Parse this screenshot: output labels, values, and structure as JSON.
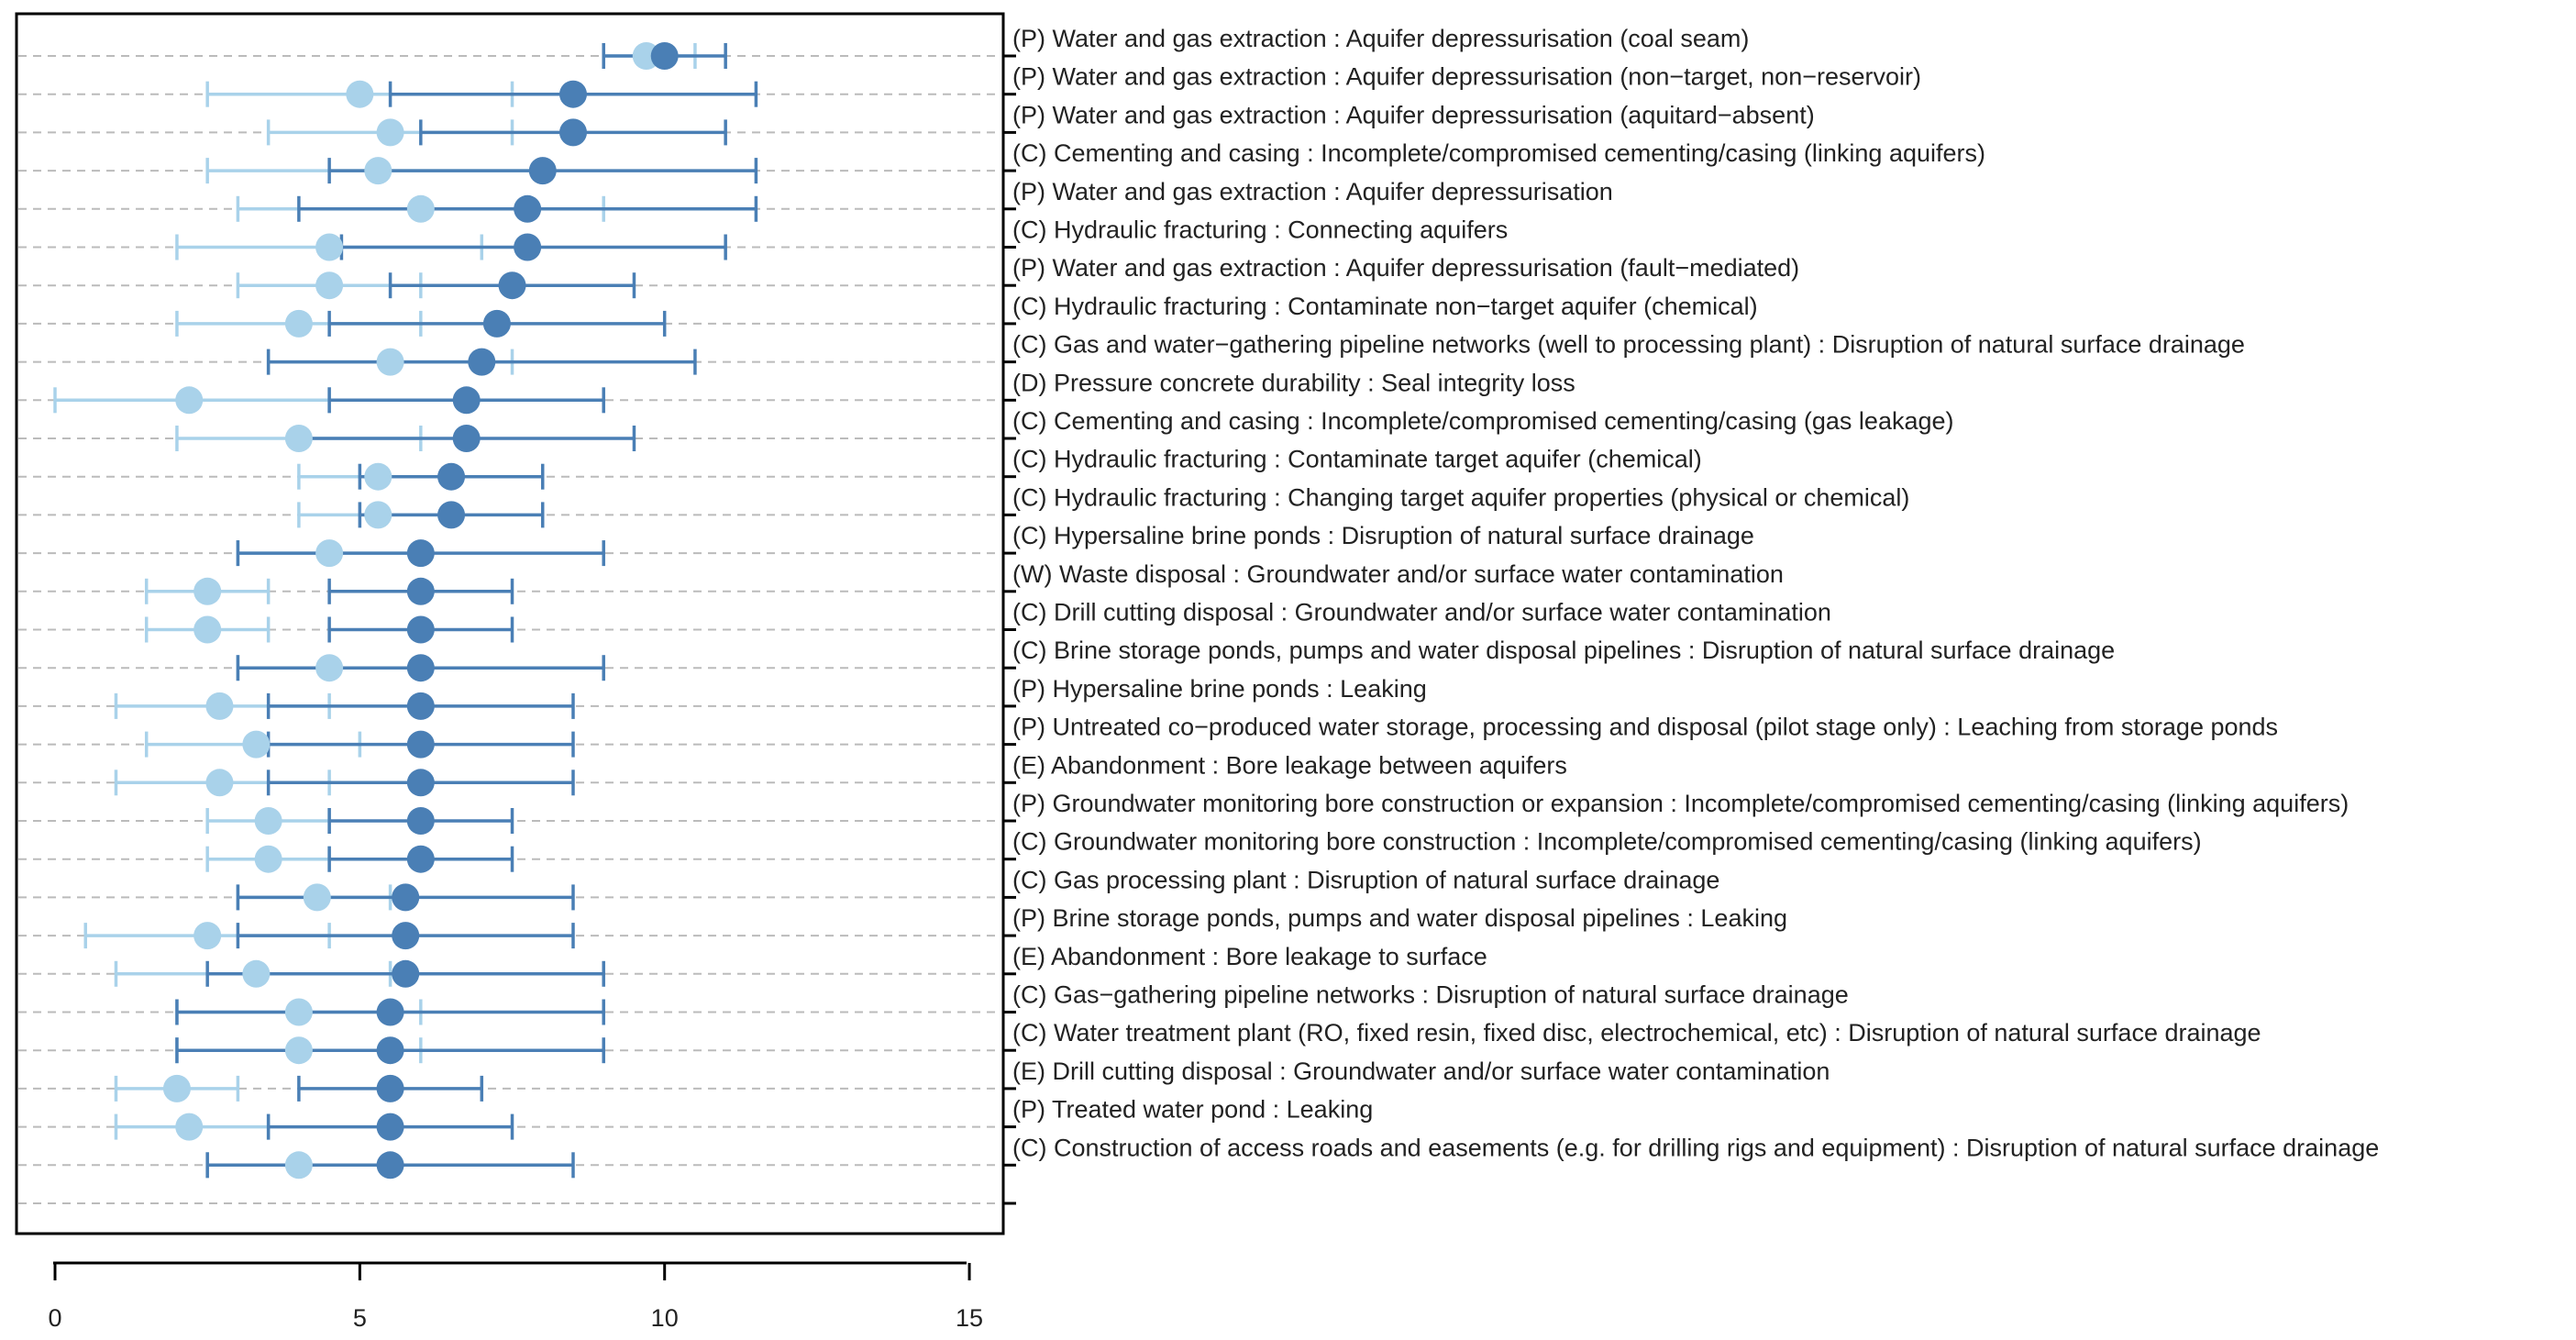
{
  "chart_data": {
    "type": "scatter",
    "subtype": "dot-and-whisker",
    "title": "",
    "xlabel": "",
    "ylabel": "",
    "xlim": [
      -0.6,
      15.6
    ],
    "x_ticks": [
      0,
      5,
      10,
      15
    ],
    "x_tick_labels": [
      "0",
      "5",
      "10",
      "15"
    ],
    "grid": "horizontal dashed",
    "legend": "none",
    "colors": {
      "series_1": "#a9d2ea",
      "series_2": "#4a7fb5",
      "grid": "#bbbbbb",
      "frame": "#000000",
      "text": "#222222"
    },
    "row_labels": [
      "(P) Water and gas extraction : Aquifer depressurisation (coal seam)",
      "(P) Water and gas extraction : Aquifer depressurisation (non−target, non−reservoir)",
      "(P) Water and gas extraction : Aquifer depressurisation (aquitard−absent)",
      "(C) Cementing and casing : Incomplete/compromised cementing/casing (linking aquifers)",
      "(P) Water and gas extraction : Aquifer depressurisation",
      "(C) Hydraulic fracturing : Connecting aquifers",
      "(P) Water and gas extraction : Aquifer depressurisation (fault−mediated)",
      "(C) Hydraulic fracturing : Contaminate non−target aquifer (chemical)",
      "(C) Gas and water−gathering pipeline networks (well to processing plant) : Disruption of natural surface drainage",
      "(D) Pressure concrete durability : Seal integrity loss",
      "(C) Cementing and casing : Incomplete/compromised cementing/casing (gas leakage)",
      "(C) Hydraulic fracturing : Contaminate target aquifer (chemical)",
      "(C) Hydraulic fracturing : Changing target aquifer properties (physical or chemical)",
      "(C) Hypersaline brine ponds : Disruption of natural surface drainage",
      "(W) Waste disposal : Groundwater and/or surface water contamination",
      "(C) Drill cutting disposal : Groundwater and/or surface water contamination",
      "(C) Brine storage ponds, pumps and water disposal pipelines : Disruption of natural surface drainage",
      "(P) Hypersaline brine ponds : Leaking",
      "(P) Untreated co−produced water storage, processing and disposal (pilot stage only) : Leaching from storage ponds",
      "(E) Abandonment : Bore leakage between aquifers",
      "(P) Groundwater monitoring bore construction or expansion : Incomplete/compromised cementing/casing (linking aquifers)",
      "(C) Groundwater monitoring bore construction : Incomplete/compromised cementing/casing (linking aquifers)",
      "(C) Gas processing plant : Disruption of natural surface drainage",
      "(P) Brine storage ponds, pumps and water disposal pipelines : Leaking",
      "(E) Abandonment : Bore leakage to surface",
      "(C) Gas−gathering pipeline networks : Disruption of natural surface drainage",
      "(C) Water treatment plant (RO, fixed resin, fixed disc, electrochemical, etc) : Disruption of natural surface drainage",
      "(E) Drill cutting disposal : Groundwater and/or surface water contamination",
      "(P) Treated water pond : Leaking",
      "(C) Construction of access roads and easements (e.g. for drilling rigs and equipment) : Disruption of natural surface drainage"
    ],
    "series": [
      {
        "points": [
          {
            "y": 0,
            "x": 9.7,
            "lo": 9.0,
            "hi": 10.5
          },
          {
            "y": 1,
            "x": 5.0,
            "lo": 2.5,
            "hi": 7.5
          },
          {
            "y": 2,
            "x": 5.5,
            "lo": 3.5,
            "hi": 7.5
          },
          {
            "y": 3,
            "x": 5.3,
            "lo": 2.5,
            "hi": 8.0
          },
          {
            "y": 4,
            "x": 6.0,
            "lo": 3.0,
            "hi": 9.0
          },
          {
            "y": 5,
            "x": 4.5,
            "lo": 2.0,
            "hi": 7.0
          },
          {
            "y": 6,
            "x": 4.5,
            "lo": 3.0,
            "hi": 6.0
          },
          {
            "y": 7,
            "x": 4.0,
            "lo": 2.0,
            "hi": 6.0
          },
          {
            "y": 8,
            "x": 5.5,
            "lo": 3.5,
            "hi": 7.5
          },
          {
            "y": 9,
            "x": 2.2,
            "lo": 0.0,
            "hi": 4.5
          },
          {
            "y": 10,
            "x": 4.0,
            "lo": 2.0,
            "hi": 6.0
          },
          {
            "y": 11,
            "x": 5.3,
            "lo": 4.0,
            "hi": 6.5
          },
          {
            "y": 12,
            "x": 5.3,
            "lo": 4.0,
            "hi": 6.5
          },
          {
            "y": 13,
            "x": 4.5,
            "lo": 3.0,
            "hi": 6.0
          },
          {
            "y": 14,
            "x": 2.5,
            "lo": 1.5,
            "hi": 3.5
          },
          {
            "y": 15,
            "x": 2.5,
            "lo": 1.5,
            "hi": 3.5
          },
          {
            "y": 16,
            "x": 4.5,
            "lo": 3.0,
            "hi": 6.0
          },
          {
            "y": 17,
            "x": 2.7,
            "lo": 1.0,
            "hi": 4.5
          },
          {
            "y": 18,
            "x": 3.3,
            "lo": 1.5,
            "hi": 5.0
          },
          {
            "y": 19,
            "x": 2.7,
            "lo": 1.0,
            "hi": 4.5
          },
          {
            "y": 20,
            "x": 3.5,
            "lo": 2.5,
            "hi": 4.5
          },
          {
            "y": 21,
            "x": 3.5,
            "lo": 2.5,
            "hi": 4.5
          },
          {
            "y": 22,
            "x": 4.3,
            "lo": 3.0,
            "hi": 5.5
          },
          {
            "y": 23,
            "x": 2.5,
            "lo": 0.5,
            "hi": 4.5
          },
          {
            "y": 24,
            "x": 3.3,
            "lo": 1.0,
            "hi": 5.5
          },
          {
            "y": 25,
            "x": 4.0,
            "lo": 2.0,
            "hi": 6.0
          },
          {
            "y": 26,
            "x": 4.0,
            "lo": 2.0,
            "hi": 6.0
          },
          {
            "y": 27,
            "x": 2.0,
            "lo": 1.0,
            "hi": 3.0
          },
          {
            "y": 28,
            "x": 2.2,
            "lo": 1.0,
            "hi": 3.5
          },
          {
            "y": 29,
            "x": 4.0,
            "lo": 2.5,
            "hi": 5.5
          }
        ]
      },
      {
        "points": [
          {
            "y": 0,
            "x": 10.0,
            "lo": 9.0,
            "hi": 11.0
          },
          {
            "y": 1,
            "x": 8.5,
            "lo": 5.5,
            "hi": 11.5
          },
          {
            "y": 2,
            "x": 8.5,
            "lo": 6.0,
            "hi": 11.0
          },
          {
            "y": 3,
            "x": 8.0,
            "lo": 4.5,
            "hi": 11.5
          },
          {
            "y": 4,
            "x": 7.75,
            "lo": 4.0,
            "hi": 11.5
          },
          {
            "y": 5,
            "x": 7.75,
            "lo": 4.7,
            "hi": 11.0
          },
          {
            "y": 6,
            "x": 7.5,
            "lo": 5.5,
            "hi": 9.5
          },
          {
            "y": 7,
            "x": 7.25,
            "lo": 4.5,
            "hi": 10.0
          },
          {
            "y": 8,
            "x": 7.0,
            "lo": 3.5,
            "hi": 10.5
          },
          {
            "y": 9,
            "x": 6.75,
            "lo": 4.5,
            "hi": 9.0
          },
          {
            "y": 10,
            "x": 6.75,
            "lo": 4.0,
            "hi": 9.5
          },
          {
            "y": 11,
            "x": 6.5,
            "lo": 5.0,
            "hi": 8.0
          },
          {
            "y": 12,
            "x": 6.5,
            "lo": 5.0,
            "hi": 8.0
          },
          {
            "y": 13,
            "x": 6.0,
            "lo": 3.0,
            "hi": 9.0
          },
          {
            "y": 14,
            "x": 6.0,
            "lo": 4.5,
            "hi": 7.5
          },
          {
            "y": 15,
            "x": 6.0,
            "lo": 4.5,
            "hi": 7.5
          },
          {
            "y": 16,
            "x": 6.0,
            "lo": 3.0,
            "hi": 9.0
          },
          {
            "y": 17,
            "x": 6.0,
            "lo": 3.5,
            "hi": 8.5
          },
          {
            "y": 18,
            "x": 6.0,
            "lo": 3.5,
            "hi": 8.5
          },
          {
            "y": 19,
            "x": 6.0,
            "lo": 3.5,
            "hi": 8.5
          },
          {
            "y": 20,
            "x": 6.0,
            "lo": 4.5,
            "hi": 7.5
          },
          {
            "y": 21,
            "x": 6.0,
            "lo": 4.5,
            "hi": 7.5
          },
          {
            "y": 22,
            "x": 5.75,
            "lo": 3.0,
            "hi": 8.5
          },
          {
            "y": 23,
            "x": 5.75,
            "lo": 3.0,
            "hi": 8.5
          },
          {
            "y": 24,
            "x": 5.75,
            "lo": 2.5,
            "hi": 9.0
          },
          {
            "y": 25,
            "x": 5.5,
            "lo": 2.0,
            "hi": 9.0
          },
          {
            "y": 26,
            "x": 5.5,
            "lo": 2.0,
            "hi": 9.0
          },
          {
            "y": 27,
            "x": 5.5,
            "lo": 4.0,
            "hi": 7.0
          },
          {
            "y": 28,
            "x": 5.5,
            "lo": 3.5,
            "hi": 7.5
          },
          {
            "y": 29,
            "x": 5.5,
            "lo": 2.5,
            "hi": 8.5
          }
        ]
      }
    ]
  }
}
